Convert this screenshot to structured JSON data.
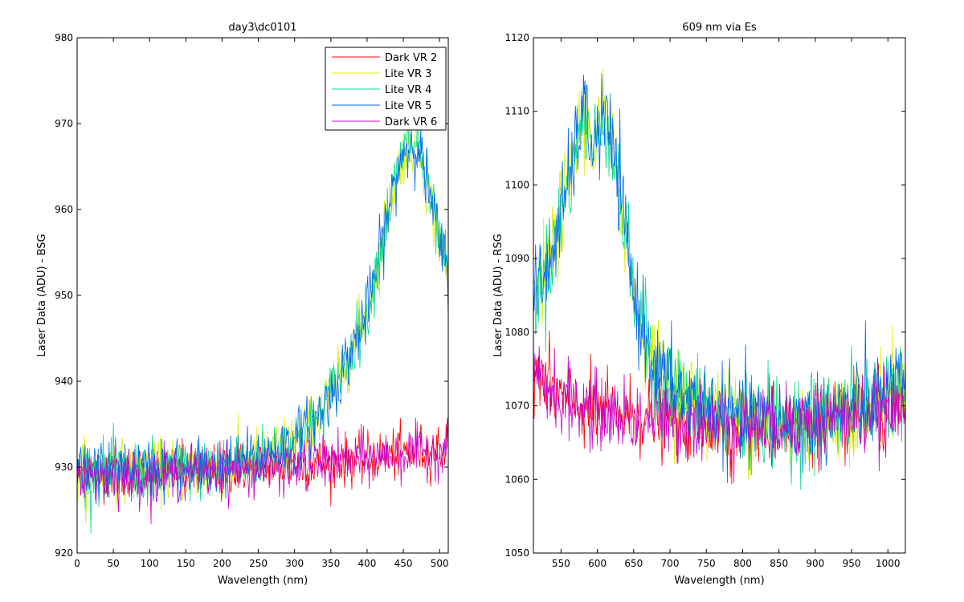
{
  "chart_data": [
    {
      "type": "line",
      "title": "day3\\dc0101",
      "xlabel": "Wavelength (nm)",
      "ylabel": "Laser Data (ADU) - BSG",
      "xlim": [
        0,
        512
      ],
      "ylim": [
        920,
        980
      ],
      "xticks": [
        0,
        50,
        100,
        150,
        200,
        250,
        300,
        350,
        400,
        450,
        500
      ],
      "yticks": [
        920,
        930,
        940,
        950,
        960,
        970,
        980
      ],
      "grid": false,
      "legend": "top-right",
      "series": [
        {
          "name": "Dark VR 2",
          "color": "#ff0000",
          "x": [
            0,
            100,
            200,
            300,
            400,
            500,
            512
          ],
          "y": [
            929.5,
            929.5,
            929.8,
            930.3,
            931.0,
            932.2,
            932.5
          ]
        },
        {
          "name": "Lite VR 3",
          "color": "#ddee00",
          "x": [
            0,
            100,
            200,
            250,
            300,
            330,
            360,
            400,
            430,
            450,
            470,
            490,
            512
          ],
          "y": [
            929.5,
            929.5,
            930.0,
            931.0,
            933.0,
            935.5,
            940.0,
            948.0,
            960.0,
            967.0,
            968.0,
            960.0,
            952.0
          ]
        },
        {
          "name": "Lite VR 4",
          "color": "#00dd88",
          "x": [
            0,
            100,
            200,
            250,
            300,
            330,
            360,
            400,
            430,
            450,
            470,
            490,
            512
          ],
          "y": [
            929.5,
            929.5,
            930.0,
            931.0,
            933.0,
            935.5,
            940.0,
            948.0,
            960.0,
            967.0,
            968.0,
            960.0,
            952.0
          ]
        },
        {
          "name": "Lite VR 5",
          "color": "#0066ee",
          "x": [
            0,
            100,
            200,
            250,
            300,
            330,
            360,
            400,
            430,
            450,
            470,
            490,
            512
          ],
          "y": [
            929.5,
            929.5,
            930.0,
            931.0,
            933.0,
            935.5,
            940.0,
            948.0,
            960.0,
            967.0,
            968.0,
            960.0,
            952.0
          ]
        },
        {
          "name": "Dark VR 6",
          "color": "#cc00cc",
          "x": [
            0,
            100,
            200,
            300,
            400,
            500,
            512
          ],
          "y": [
            929.0,
            929.0,
            929.5,
            930.0,
            931.0,
            932.0,
            932.3
          ]
        }
      ]
    },
    {
      "type": "line",
      "title": "609 nm via Es",
      "xlabel": "Wavelength (nm)",
      "ylabel": "Laser Data (ADU) - RSG",
      "xlim": [
        512,
        1024
      ],
      "ylim": [
        1050,
        1120
      ],
      "xticks": [
        550,
        600,
        650,
        700,
        750,
        800,
        850,
        900,
        950,
        1000
      ],
      "yticks": [
        1050,
        1060,
        1070,
        1080,
        1090,
        1100,
        1110,
        1120
      ],
      "grid": false,
      "series": [
        {
          "name": "Dark VR 2",
          "color": "#ff0000",
          "x": [
            512,
            550,
            600,
            700,
            800,
            900,
            950,
            1024
          ],
          "y": [
            1075.0,
            1071.0,
            1069.0,
            1068.0,
            1067.0,
            1067.5,
            1068.0,
            1069.0
          ]
        },
        {
          "name": "Lite VR 3",
          "color": "#ddee00",
          "x": [
            512,
            530,
            560,
            580,
            595,
            610,
            630,
            650,
            680,
            720,
            800,
            900,
            960,
            1024
          ],
          "y": [
            1085.0,
            1088.0,
            1100.0,
            1110.0,
            1105.0,
            1110.0,
            1100.0,
            1085.0,
            1075.0,
            1071.0,
            1068.0,
            1068.0,
            1070.0,
            1073.0
          ]
        },
        {
          "name": "Lite VR 4",
          "color": "#00dd88",
          "x": [
            512,
            530,
            560,
            580,
            595,
            610,
            630,
            650,
            680,
            720,
            800,
            900,
            960,
            1024
          ],
          "y": [
            1085.0,
            1088.0,
            1100.0,
            1110.0,
            1105.0,
            1110.0,
            1100.0,
            1085.0,
            1075.0,
            1071.0,
            1068.0,
            1068.0,
            1070.0,
            1073.0
          ]
        },
        {
          "name": "Lite VR 5",
          "color": "#0066ee",
          "x": [
            512,
            530,
            560,
            580,
            595,
            610,
            630,
            650,
            680,
            720,
            800,
            900,
            960,
            1024
          ],
          "y": [
            1085.0,
            1088.0,
            1100.0,
            1110.0,
            1105.0,
            1110.0,
            1100.0,
            1085.0,
            1075.0,
            1071.0,
            1068.0,
            1068.0,
            1070.0,
            1073.0
          ]
        },
        {
          "name": "Dark VR 6",
          "color": "#cc00cc",
          "x": [
            512,
            550,
            600,
            700,
            800,
            900,
            950,
            1024
          ],
          "y": [
            1074.0,
            1071.0,
            1069.0,
            1068.0,
            1067.5,
            1068.0,
            1068.5,
            1069.5
          ]
        }
      ]
    }
  ]
}
